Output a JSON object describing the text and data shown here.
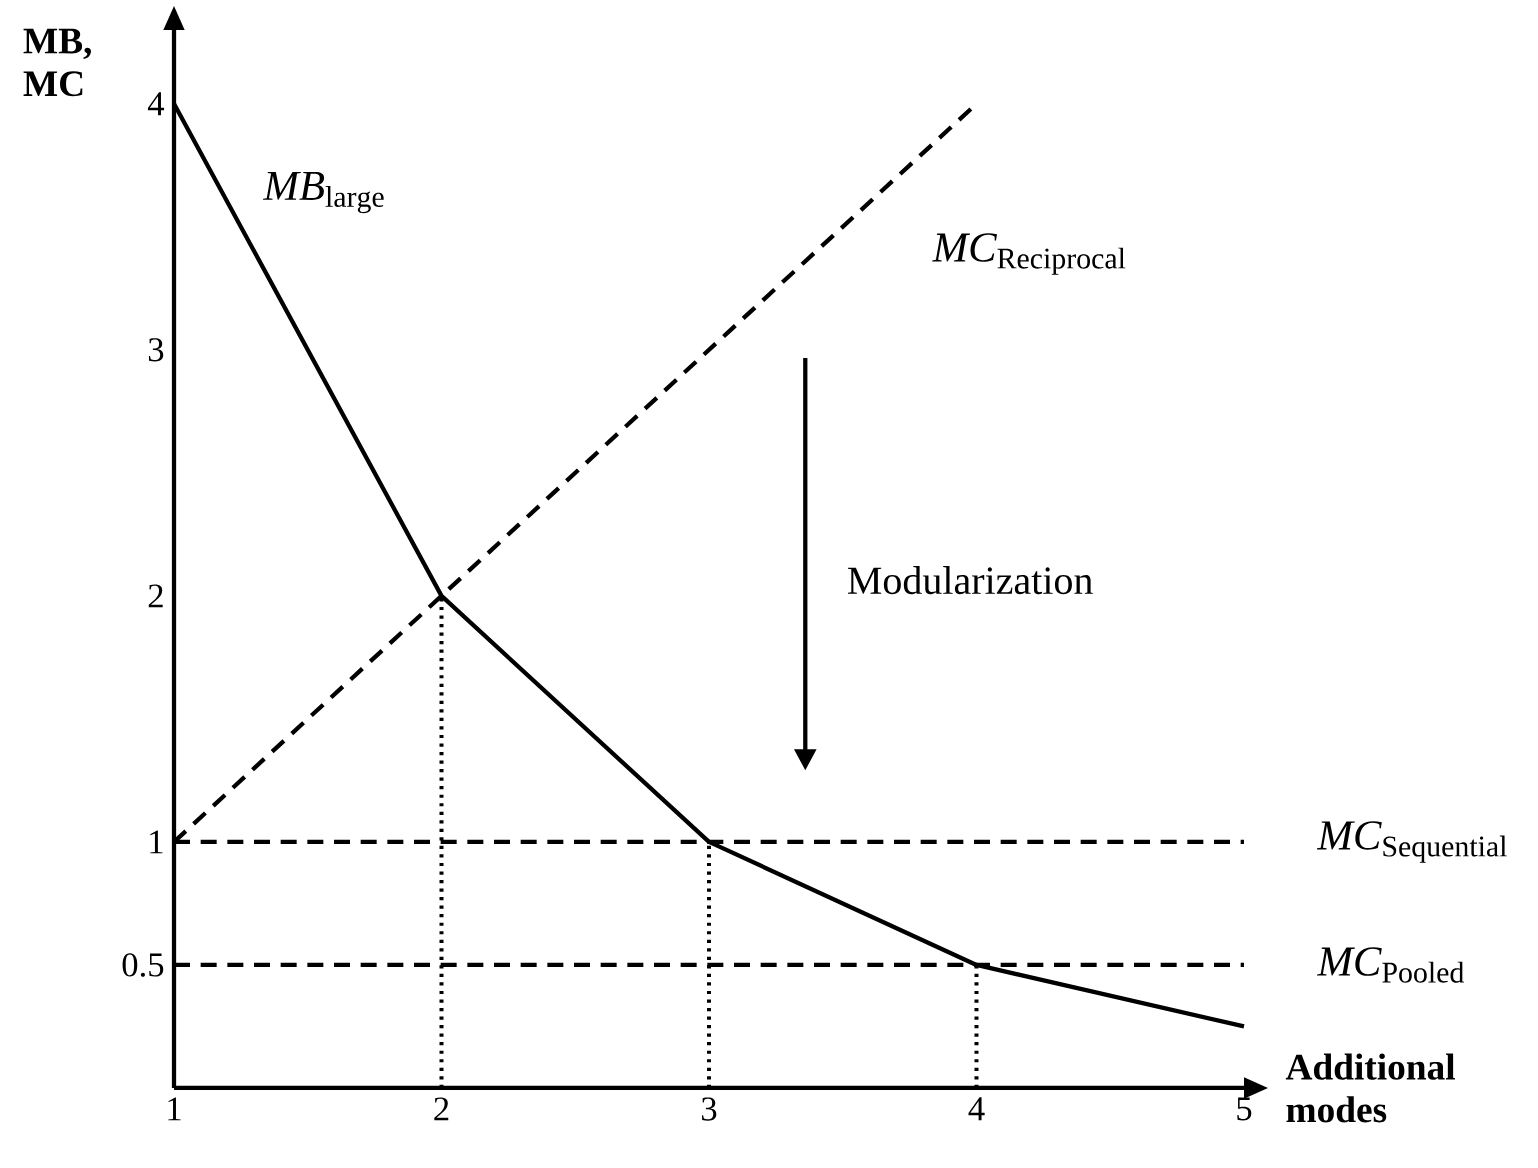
{
  "chart_data": {
    "type": "line",
    "xlabel": "Additional modes",
    "ylabel": "MB, MC",
    "xlim": [
      1,
      5
    ],
    "ylim": [
      0,
      4.3
    ],
    "xticks": [
      1,
      2,
      3,
      4,
      5
    ],
    "yticks": [
      0.5,
      1,
      2,
      3,
      4
    ],
    "annotations": [
      "Modularization"
    ],
    "legend": false,
    "grid": false,
    "marker": "none",
    "series": [
      {
        "name": "MB_{\\mathrm{large}}",
        "color": "#000000",
        "line_style": "solid",
        "x": [
          1,
          2,
          3,
          4,
          5
        ],
        "values": [
          4,
          2,
          1,
          0.5,
          0.25
        ]
      },
      {
        "name": "MC_{\\mathrm{Reciprocal}}",
        "color": "#000000",
        "line_style": "dashed",
        "x": [
          1,
          4
        ],
        "values": [
          1,
          4
        ]
      },
      {
        "name": "MC_{\\mathrm{Sequential}}",
        "color": "#000000",
        "line_style": "dashed",
        "x": [
          1,
          5
        ],
        "values": [
          1,
          1
        ]
      },
      {
        "name": "MC_{\\mathrm{Pooled}}",
        "color": "#000000",
        "line_style": "dashed",
        "x": [
          1,
          5
        ],
        "values": [
          0.5,
          0.5
        ]
      },
      {
        "color": "#000000",
        "line_style": "dotted",
        "x": [
          2,
          2
        ],
        "values": [
          0,
          2
        ]
      },
      {
        "color": "#000000",
        "line_style": "dotted",
        "x": [
          3,
          3
        ],
        "values": [
          0,
          1
        ]
      },
      {
        "color": "#000000",
        "line_style": "dotted",
        "x": [
          4,
          4
        ],
        "values": [
          0,
          0.5
        ]
      }
    ]
  }
}
